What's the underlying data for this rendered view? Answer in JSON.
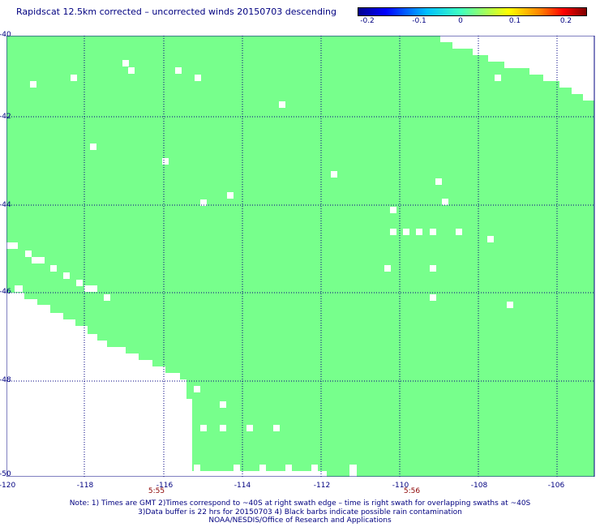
{
  "title": "Rapidscat 12.5km corrected – uncorrected winds 20150703 descending",
  "colorbar": {
    "ticks": [
      "-0.2",
      "-0.1",
      "0",
      "0.1",
      "0.2"
    ],
    "range": [
      -0.2,
      0.2
    ]
  },
  "map": {
    "lon_range": [
      -120,
      -105
    ],
    "lat_range": [
      -50,
      -40
    ],
    "lat_labels": [
      "-40",
      "-42",
      "-44",
      "-46",
      "-48",
      "-50"
    ],
    "lon_labels": [
      "-120",
      "-118",
      "-116",
      "-114",
      "-112",
      "-110",
      "-108",
      "-106"
    ],
    "data_color": "#77ff8c",
    "grid_color": "#000080",
    "time_labels": [
      "5:55",
      "5:56"
    ]
  },
  "notes": {
    "line1": "Note: 1) Times are GMT 2)Times correspond to ~40S at right swath edge – time is right swath for overlapping swaths at ~40S",
    "line2": "3)Data buffer is 22 hrs for 20150703 4) Black barbs indicate possible rain contamination",
    "line3": "NOAA/NESDIS/Office of Research and Applications"
  }
}
